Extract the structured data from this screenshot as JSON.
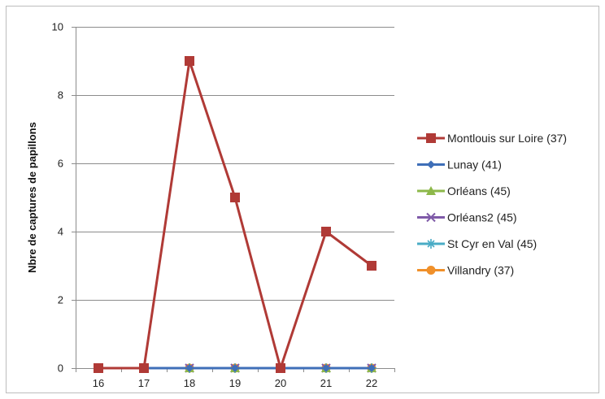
{
  "chart_data": {
    "type": "line",
    "title": "",
    "xlabel": "",
    "ylabel": "Nbre de captures de papillons",
    "x": [
      16,
      17,
      18,
      19,
      20,
      21,
      22
    ],
    "ylim": [
      0,
      10
    ],
    "yticks": [
      0,
      2,
      4,
      6,
      8,
      10
    ],
    "grid": true,
    "legend_position": "right",
    "series": [
      {
        "name": "Montlouis sur Loire (37)",
        "values": [
          0,
          0,
          9,
          5,
          0,
          4,
          3
        ],
        "color": "#b03a36",
        "marker": "square"
      },
      {
        "name": "Lunay (41)",
        "values": [
          0,
          0,
          0,
          0,
          0,
          0,
          0
        ],
        "color": "#3f6fb8",
        "marker": "diamond"
      },
      {
        "name": "Orléans (45)",
        "values": [
          0,
          0,
          0,
          0,
          0,
          0,
          0
        ],
        "color": "#8db84a",
        "marker": "triangle"
      },
      {
        "name": "Orléans2 (45)",
        "values": [
          0,
          0,
          0,
          0,
          0,
          0,
          0
        ],
        "color": "#7f5aa8",
        "marker": "x"
      },
      {
        "name": "St Cyr en Val (45)",
        "values": [
          0,
          0,
          0,
          0,
          0,
          0,
          0
        ],
        "color": "#4aacc6",
        "marker": "star"
      },
      {
        "name": "Villandry (37)",
        "values": [
          0,
          0,
          0,
          0,
          0,
          0,
          0
        ],
        "color": "#f0902a",
        "marker": "circle"
      }
    ]
  }
}
